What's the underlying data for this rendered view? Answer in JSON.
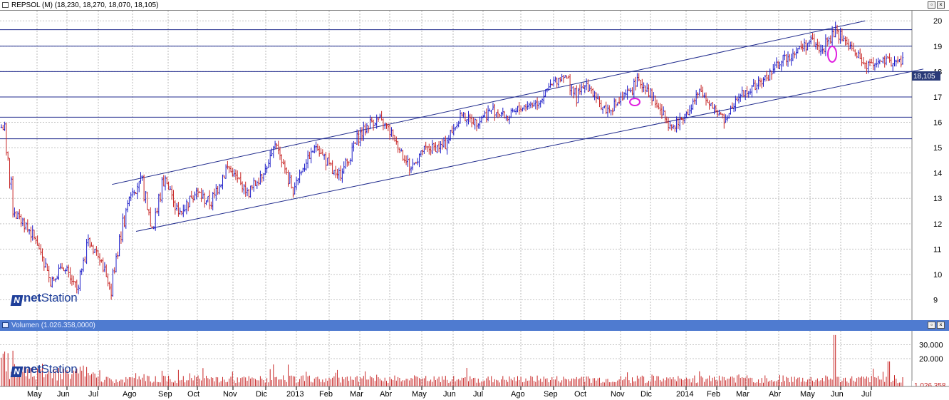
{
  "price_panel": {
    "title": "REPSOL (M) (18,230, 18,270, 18,070, 18,105)",
    "last_price_label": "18,105",
    "watermark_a": "net",
    "watermark_b": "Station"
  },
  "volume_panel": {
    "title": "Volumen (1.026.358,0000)",
    "last_label": "1.026.358",
    "watermark_a": "net",
    "watermark_b": "Station"
  },
  "colors": {
    "up_bar": "#1c1cc8",
    "down_bar": "#c82828",
    "trend_lines": "#1f2a8c",
    "highlight_ellipse": "#e020e0",
    "last_label_bg": "#2a3a78",
    "volume_bar": "#c82828"
  },
  "chart_data": {
    "type": "ohlc",
    "y_ticks": [
      9,
      10,
      11,
      12,
      13,
      14,
      15,
      16,
      17,
      18,
      19,
      20
    ],
    "ylim": [
      8.2,
      20.4
    ],
    "x_months": [
      "May",
      "Jun",
      "Jul",
      "Ago",
      "Sep",
      "Oct",
      "Nov",
      "Dic",
      "2013",
      "Feb",
      "Mar",
      "Abr",
      "May",
      "Jun",
      "Jul",
      "Ago",
      "Sep",
      "Oct",
      "Nov",
      "Dic",
      "2014",
      "Feb",
      "Mar",
      "Abr",
      "May",
      "Jun",
      "Jul"
    ],
    "horizontal_levels": [
      15.35,
      16.2,
      17.0,
      18.0,
      19.0,
      19.65
    ],
    "channel": {
      "upper": [
        [
          "Jul 2012",
          13.55
        ],
        [
          "Jul 2014",
          20.0
        ]
      ],
      "lower": [
        [
          "Ago 2012",
          11.7
        ],
        [
          "Jul 2014",
          18.1
        ]
      ]
    },
    "price_path": [
      [
        0,
        15.8
      ],
      [
        0.3,
        12.5
      ],
      [
        0.9,
        11.4
      ],
      [
        1.4,
        9.7
      ],
      [
        1.8,
        10.3
      ],
      [
        2.3,
        9.4
      ],
      [
        2.6,
        11.3
      ],
      [
        3.0,
        10.7
      ],
      [
        3.3,
        9.3
      ],
      [
        3.6,
        11.5
      ],
      [
        3.9,
        13.2
      ],
      [
        4.2,
        13.7
      ],
      [
        4.5,
        11.9
      ],
      [
        4.85,
        13.9
      ],
      [
        5.3,
        12.3
      ],
      [
        5.9,
        13.3
      ],
      [
        6.3,
        12.8
      ],
      [
        6.8,
        14.2
      ],
      [
        7.4,
        13.2
      ],
      [
        8.0,
        14.3
      ],
      [
        8.3,
        15.2
      ],
      [
        8.8,
        13.3
      ],
      [
        9.3,
        14.5
      ],
      [
        9.6,
        15.1
      ],
      [
        10.2,
        13.8
      ],
      [
        10.6,
        14.6
      ],
      [
        10.9,
        15.4
      ],
      [
        11.3,
        16.0
      ],
      [
        11.6,
        16.1
      ],
      [
        12.0,
        15.6
      ],
      [
        12.6,
        14.2
      ],
      [
        13.0,
        14.9
      ],
      [
        13.7,
        15.1
      ],
      [
        14.2,
        16.3
      ],
      [
        14.7,
        16.0
      ],
      [
        15.2,
        16.5
      ],
      [
        15.6,
        16.2
      ],
      [
        16.0,
        16.6
      ],
      [
        16.5,
        16.8
      ],
      [
        17.0,
        17.6
      ],
      [
        17.3,
        17.9
      ],
      [
        17.7,
        16.9
      ],
      [
        18.0,
        17.6
      ],
      [
        18.3,
        16.8
      ],
      [
        18.6,
        16.5
      ],
      [
        19.1,
        17.0
      ],
      [
        19.5,
        17.6
      ],
      [
        19.8,
        17.4
      ],
      [
        20.2,
        16.5
      ],
      [
        20.6,
        15.8
      ],
      [
        21.0,
        16.4
      ],
      [
        21.4,
        17.2
      ],
      [
        21.8,
        16.7
      ],
      [
        22.2,
        16.0
      ],
      [
        22.6,
        17.0
      ],
      [
        23.0,
        17.2
      ],
      [
        23.6,
        17.8
      ],
      [
        24.0,
        18.4
      ],
      [
        24.5,
        18.8
      ],
      [
        25.0,
        19.2
      ],
      [
        25.3,
        18.8
      ],
      [
        25.8,
        19.6
      ],
      [
        26.1,
        19.2
      ],
      [
        26.5,
        18.6
      ],
      [
        26.8,
        18.2
      ],
      [
        27.2,
        18.9
      ],
      [
        27.6,
        18.1
      ]
    ],
    "volume_y_ticks": [
      20000,
      30000
    ],
    "volume_ylim": [
      0,
      40000
    ],
    "last_close": 18.105,
    "last_volume": 1026358
  }
}
